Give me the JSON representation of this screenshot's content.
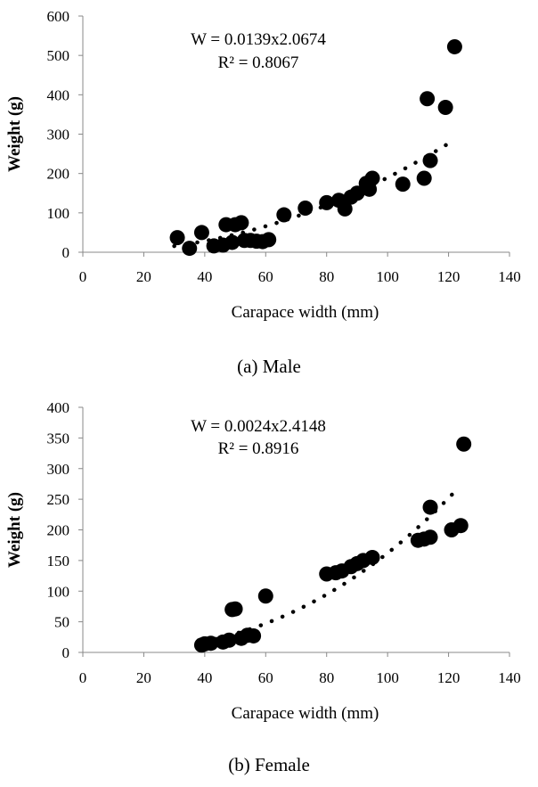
{
  "chart_data": [
    {
      "type": "scatter",
      "caption": "(a) Male",
      "xlabel": "Carapace width  (mm)",
      "ylabel": "Weight  (g)",
      "xlim": [
        0,
        140
      ],
      "ylim": [
        0,
        600
      ],
      "xticks": [
        "0",
        "20",
        "40",
        "60",
        "80",
        "100",
        "120",
        "140"
      ],
      "yticks": [
        "0",
        "100",
        "200",
        "300",
        "400",
        "500",
        "600"
      ],
      "grid": false,
      "equation": "W = 0.0139x2.0674",
      "r2": "R² = 0.8067",
      "trend": {
        "a": 0.0139,
        "b": 2.0674,
        "x_range": [
          30,
          122
        ]
      },
      "points": [
        [
          31,
          37
        ],
        [
          35,
          10
        ],
        [
          39,
          50
        ],
        [
          43,
          16
        ],
        [
          46,
          18
        ],
        [
          47,
          70
        ],
        [
          49,
          25
        ],
        [
          50,
          70
        ],
        [
          52,
          75
        ],
        [
          53,
          30
        ],
        [
          55,
          30
        ],
        [
          57,
          28
        ],
        [
          59,
          27
        ],
        [
          61,
          32
        ],
        [
          66,
          95
        ],
        [
          73,
          112
        ],
        [
          80,
          126
        ],
        [
          84,
          132
        ],
        [
          86,
          110
        ],
        [
          88,
          140
        ],
        [
          90,
          150
        ],
        [
          93,
          175
        ],
        [
          94,
          160
        ],
        [
          95,
          188
        ],
        [
          105,
          173
        ],
        [
          112,
          188
        ],
        [
          113,
          390
        ],
        [
          114,
          233
        ],
        [
          119,
          368
        ],
        [
          122,
          522
        ]
      ]
    },
    {
      "type": "scatter",
      "caption": "(b) Female",
      "xlabel": "Carapace width  (mm)",
      "ylabel": "Weight  (g)",
      "xlim": [
        0,
        140
      ],
      "ylim": [
        0,
        400
      ],
      "xticks": [
        "0",
        "20",
        "40",
        "60",
        "80",
        "100",
        "120",
        "140"
      ],
      "yticks": [
        "0",
        "50",
        "100",
        "150",
        "200",
        "250",
        "300",
        "350",
        "400"
      ],
      "grid": false,
      "equation": "W = 0.0024x2.4148",
      "r2": "R² = 0.8916",
      "trend": {
        "a": 0.0024,
        "b": 2.4148,
        "x_range": [
          40,
          122
        ]
      },
      "points": [
        [
          39,
          12
        ],
        [
          40,
          14
        ],
        [
          42,
          15
        ],
        [
          46,
          17
        ],
        [
          48,
          20
        ],
        [
          49,
          70
        ],
        [
          50,
          71
        ],
        [
          52,
          23
        ],
        [
          54,
          28
        ],
        [
          56,
          27
        ],
        [
          60,
          92
        ],
        [
          80,
          128
        ],
        [
          83,
          130
        ],
        [
          85,
          133
        ],
        [
          88,
          140
        ],
        [
          90,
          145
        ],
        [
          92,
          150
        ],
        [
          95,
          155
        ],
        [
          110,
          183
        ],
        [
          112,
          185
        ],
        [
          114,
          188
        ],
        [
          114,
          237
        ],
        [
          121,
          200
        ],
        [
          124,
          207
        ],
        [
          125,
          340
        ]
      ]
    }
  ]
}
